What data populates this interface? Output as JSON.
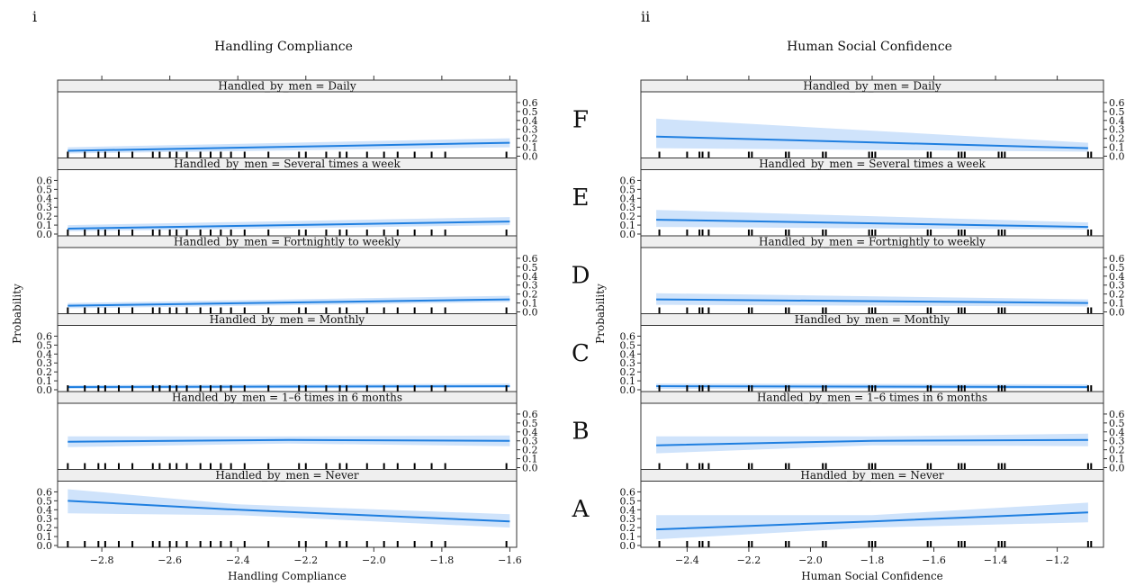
{
  "figure": {
    "colors": {
      "line": "#1f7fe0",
      "band": "#cfe3fb",
      "strip_bg": "#efefef",
      "frame": "#333333"
    },
    "row_letters": [
      "F",
      "E",
      "D",
      "C",
      "B",
      "A"
    ],
    "panel_labels": [
      "i",
      "ii"
    ]
  },
  "chart_data": [
    {
      "type": "line",
      "panel_label": "i",
      "title": "Handling Compliance",
      "xlabel": "Handling Compliance",
      "ylabel": "Probability",
      "xlim": [
        -2.93,
        -1.58
      ],
      "ylim": [
        0,
        0.68
      ],
      "x_ticks": [
        -2.8,
        -2.6,
        -2.4,
        -2.2,
        -2.0,
        -1.8,
        -1.6
      ],
      "x_tick_labels": [
        "−2.8",
        "−2.6",
        "−2.4",
        "−2.2",
        "−2.0",
        "−1.8",
        "−1.6"
      ],
      "y_ticks": [
        0.0,
        0.1,
        0.2,
        0.3,
        0.4,
        0.5,
        0.6
      ],
      "y_tick_labels": [
        "0.0",
        "0.1",
        "0.2",
        "0.3",
        "0.4",
        "0.5",
        "0.6"
      ],
      "rug_x": [
        -2.9,
        -2.85,
        -2.81,
        -2.79,
        -2.75,
        -2.71,
        -2.65,
        -2.63,
        -2.6,
        -2.58,
        -2.55,
        -2.51,
        -2.48,
        -2.45,
        -2.42,
        -2.38,
        -2.31,
        -2.22,
        -2.2,
        -2.14,
        -2.1,
        -2.08,
        -2.02,
        -1.97,
        -1.93,
        -1.88,
        -1.83,
        -1.79,
        -1.61
      ],
      "facets": [
        {
          "strip": "Handled_by_men = Daily",
          "x": [
            -2.9,
            -1.6
          ],
          "fit": [
            0.06,
            0.15
          ],
          "lower": [
            0.03,
            0.1
          ],
          "upper": [
            0.1,
            0.2
          ]
        },
        {
          "strip": "Handled_by_men = Several times a week",
          "x": [
            -2.9,
            -1.6
          ],
          "fit": [
            0.06,
            0.14
          ],
          "lower": [
            0.03,
            0.1
          ],
          "upper": [
            0.1,
            0.19
          ]
        },
        {
          "strip": "Handled_by_men = Fortnightly to weekly",
          "x": [
            -2.9,
            -1.6
          ],
          "fit": [
            0.07,
            0.14
          ],
          "lower": [
            0.04,
            0.11
          ],
          "upper": [
            0.1,
            0.18
          ]
        },
        {
          "strip": "Handled_by_men = Monthly",
          "x": [
            -2.9,
            -1.6
          ],
          "fit": [
            0.03,
            0.04
          ],
          "lower": [
            0.01,
            0.02
          ],
          "upper": [
            0.05,
            0.07
          ]
        },
        {
          "strip": "Handled_by_men = 1–6 times in 6 months",
          "x": [
            -2.9,
            -2.25,
            -1.6
          ],
          "fit": [
            0.29,
            0.31,
            0.3
          ],
          "lower": [
            0.23,
            0.27,
            0.24
          ],
          "upper": [
            0.35,
            0.35,
            0.36
          ]
        },
        {
          "strip": "Handled_by_men = Never",
          "x": [
            -2.9,
            -2.4,
            -1.6
          ],
          "fit": [
            0.5,
            0.4,
            0.27
          ],
          "lower": [
            0.36,
            0.34,
            0.2
          ],
          "upper": [
            0.63,
            0.46,
            0.35
          ]
        }
      ]
    },
    {
      "type": "line",
      "panel_label": "ii",
      "title": "Human Social Confidence",
      "xlabel": "Human Social Confidence",
      "ylabel": "Probability",
      "xlim": [
        -2.55,
        -1.05
      ],
      "ylim": [
        0,
        0.68
      ],
      "x_ticks": [
        -2.4,
        -2.2,
        -2.0,
        -1.8,
        -1.6,
        -1.4,
        -1.2
      ],
      "x_tick_labels": [
        "−2.4",
        "−2.2",
        "−2.0",
        "−1.8",
        "−1.6",
        "−1.4",
        "−1.2"
      ],
      "y_ticks": [
        0.0,
        0.1,
        0.2,
        0.3,
        0.4,
        0.5,
        0.6
      ],
      "y_tick_labels": [
        "0.0",
        "0.1",
        "0.2",
        "0.3",
        "0.4",
        "0.5",
        "0.6"
      ],
      "rug_x": [
        -2.49,
        -2.4,
        -2.36,
        -2.35,
        -2.33,
        -2.2,
        -2.19,
        -2.08,
        -2.07,
        -1.96,
        -1.95,
        -1.81,
        -1.8,
        -1.79,
        -1.62,
        -1.61,
        -1.52,
        -1.51,
        -1.5,
        -1.39,
        -1.38,
        -1.37,
        -1.1,
        -1.09
      ],
      "facets": [
        {
          "strip": "Handled_by_men = Daily",
          "x": [
            -2.5,
            -1.1
          ],
          "fit": [
            0.22,
            0.09
          ],
          "lower": [
            0.09,
            0.05
          ],
          "upper": [
            0.42,
            0.15
          ]
        },
        {
          "strip": "Handled_by_men = Several times a week",
          "x": [
            -2.5,
            -1.1
          ],
          "fit": [
            0.16,
            0.08
          ],
          "lower": [
            0.08,
            0.05
          ],
          "upper": [
            0.27,
            0.13
          ]
        },
        {
          "strip": "Handled_by_men = Fortnightly to weekly",
          "x": [
            -2.5,
            -1.1
          ],
          "fit": [
            0.14,
            0.1
          ],
          "lower": [
            0.08,
            0.06
          ],
          "upper": [
            0.21,
            0.14
          ]
        },
        {
          "strip": "Handled_by_men = Monthly",
          "x": [
            -2.5,
            -1.1
          ],
          "fit": [
            0.04,
            0.03
          ],
          "lower": [
            0.01,
            0.01
          ],
          "upper": [
            0.07,
            0.06
          ]
        },
        {
          "strip": "Handled_by_men = 1–6 times in 6 months",
          "x": [
            -2.5,
            -1.8,
            -1.1
          ],
          "fit": [
            0.25,
            0.3,
            0.31
          ],
          "lower": [
            0.16,
            0.25,
            0.24
          ],
          "upper": [
            0.35,
            0.35,
            0.38
          ]
        },
        {
          "strip": "Handled_by_men = Never",
          "x": [
            -2.5,
            -1.8,
            -1.1
          ],
          "fit": [
            0.18,
            0.27,
            0.37
          ],
          "lower": [
            0.07,
            0.2,
            0.26
          ],
          "upper": [
            0.34,
            0.34,
            0.48
          ]
        }
      ]
    }
  ]
}
